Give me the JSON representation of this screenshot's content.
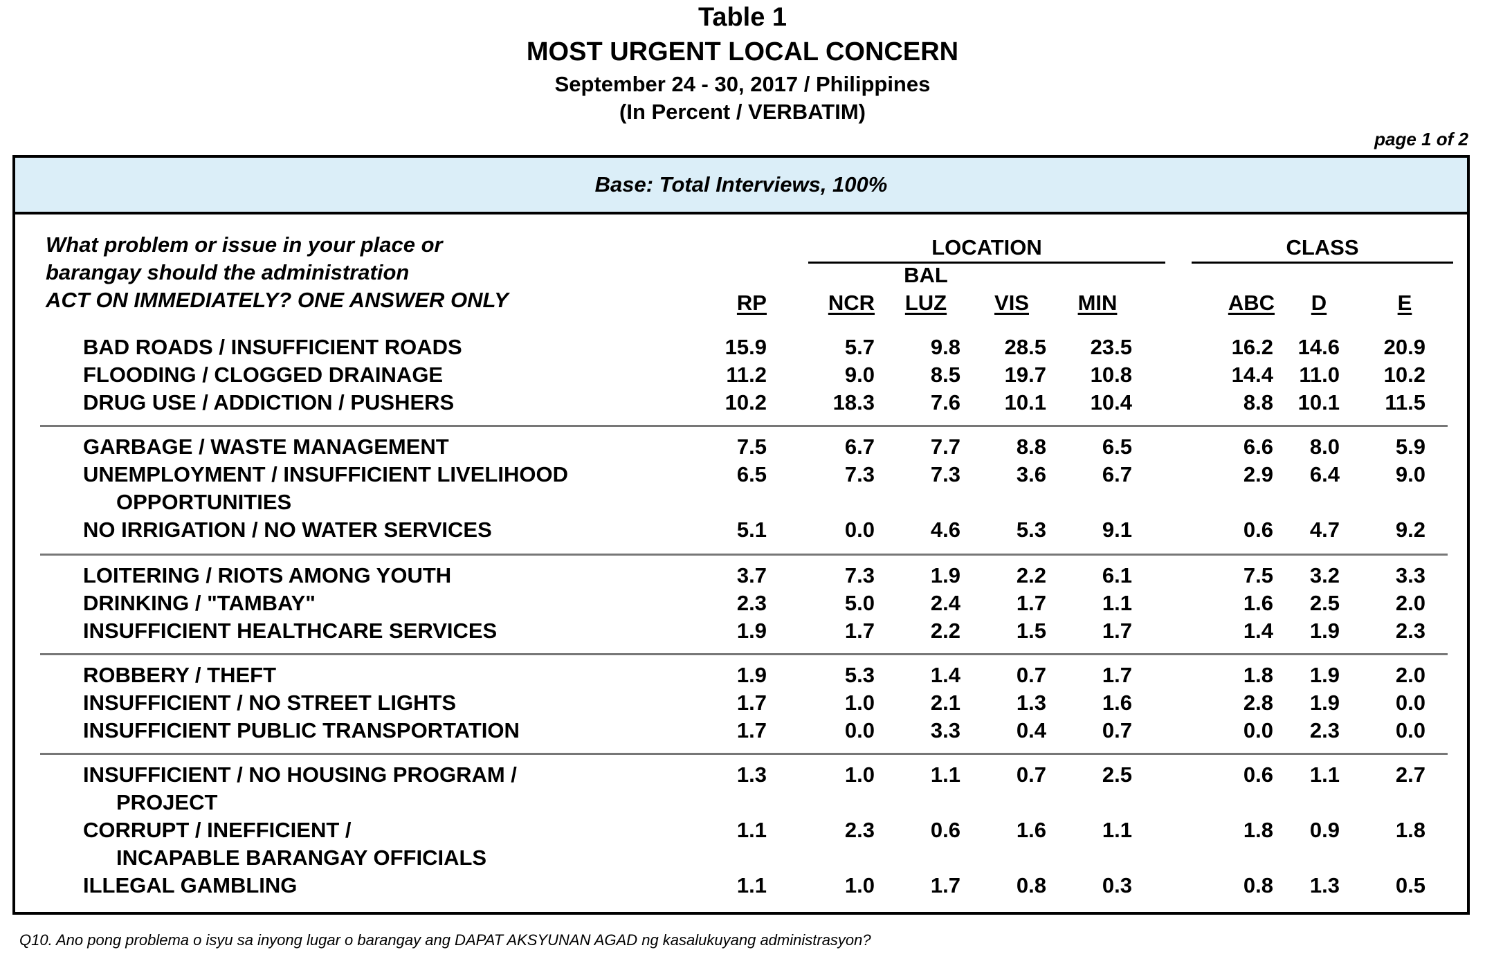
{
  "header": {
    "table_number": "Table 1",
    "title": "MOST URGENT LOCAL CONCERN",
    "date_location": "September 24 - 30, 2017 / Philippines",
    "unit": "(In Percent / VERBATIM)",
    "page_indicator": "page 1 of 2"
  },
  "base_label": "Base: Total Interviews, 100%",
  "question": {
    "line1": "What problem or issue in your place or",
    "line2": "barangay should the administration",
    "line3": "ACT ON IMMEDIATELY? ONE ANSWER ONLY"
  },
  "groups": {
    "location": "LOCATION",
    "class": "CLASS"
  },
  "columns": {
    "rp": "RP",
    "ncr": "NCR",
    "bal_top": "BAL",
    "bal_bottom": "LUZ",
    "vis": "VIS",
    "min": "MIN",
    "abc": "ABC",
    "d": "D",
    "e": "E"
  },
  "rows": [
    {
      "label": "BAD ROADS / INSUFFICIENT ROADS",
      "label2": "",
      "values": [
        "15.9",
        "5.7",
        "9.8",
        "28.5",
        "23.5",
        "16.2",
        "14.6",
        "20.9"
      ]
    },
    {
      "label": "FLOODING / CLOGGED DRAINAGE",
      "label2": "",
      "values": [
        "11.2",
        "9.0",
        "8.5",
        "19.7",
        "10.8",
        "14.4",
        "11.0",
        "10.2"
      ]
    },
    {
      "label": "DRUG USE / ADDICTION / PUSHERS",
      "label2": "",
      "values": [
        "10.2",
        "18.3",
        "7.6",
        "10.1",
        "10.4",
        "8.8",
        "10.1",
        "11.5"
      ]
    },
    {
      "label": "GARBAGE / WASTE MANAGEMENT",
      "label2": "",
      "values": [
        "7.5",
        "6.7",
        "7.7",
        "8.8",
        "6.5",
        "6.6",
        "8.0",
        "5.9"
      ]
    },
    {
      "label": "UNEMPLOYMENT / INSUFFICIENT LIVELIHOOD",
      "label2": "OPPORTUNITIES",
      "values": [
        "6.5",
        "7.3",
        "7.3",
        "3.6",
        "6.7",
        "2.9",
        "6.4",
        "9.0"
      ]
    },
    {
      "label": "NO IRRIGATION / NO WATER SERVICES",
      "label2": "",
      "values": [
        "5.1",
        "0.0",
        "4.6",
        "5.3",
        "9.1",
        "0.6",
        "4.7",
        "9.2"
      ]
    },
    {
      "label": "LOITERING / RIOTS AMONG YOUTH",
      "label2": "",
      "values": [
        "3.7",
        "7.3",
        "1.9",
        "2.2",
        "6.1",
        "7.5",
        "3.2",
        "3.3"
      ]
    },
    {
      "label": "DRINKING / \"TAMBAY\"",
      "label2": "",
      "values": [
        "2.3",
        "5.0",
        "2.4",
        "1.7",
        "1.1",
        "1.6",
        "2.5",
        "2.0"
      ]
    },
    {
      "label": "INSUFFICIENT HEALTHCARE SERVICES",
      "label2": "",
      "values": [
        "1.9",
        "1.7",
        "2.2",
        "1.5",
        "1.7",
        "1.4",
        "1.9",
        "2.3"
      ]
    },
    {
      "label": "ROBBERY / THEFT",
      "label2": "",
      "values": [
        "1.9",
        "5.3",
        "1.4",
        "0.7",
        "1.7",
        "1.8",
        "1.9",
        "2.0"
      ]
    },
    {
      "label": "INSUFFICIENT / NO STREET LIGHTS",
      "label2": "",
      "values": [
        "1.7",
        "1.0",
        "2.1",
        "1.3",
        "1.6",
        "2.8",
        "1.9",
        "0.0"
      ]
    },
    {
      "label": "INSUFFICIENT PUBLIC TRANSPORTATION",
      "label2": "",
      "values": [
        "1.7",
        "0.0",
        "3.3",
        "0.4",
        "0.7",
        "0.0",
        "2.3",
        "0.0"
      ]
    },
    {
      "label": "INSUFFICIENT / NO HOUSING PROGRAM /",
      "label2": "PROJECT",
      "values": [
        "1.3",
        "1.0",
        "1.1",
        "0.7",
        "2.5",
        "0.6",
        "1.1",
        "2.7"
      ]
    },
    {
      "label": "CORRUPT / INEFFICIENT /",
      "label2": "INCAPABLE BARANGAY OFFICIALS",
      "values": [
        "1.1",
        "2.3",
        "0.6",
        "1.6",
        "1.1",
        "1.8",
        "0.9",
        "1.8"
      ]
    },
    {
      "label": "ILLEGAL GAMBLING",
      "label2": "",
      "values": [
        "1.1",
        "1.0",
        "1.7",
        "0.8",
        "0.3",
        "0.8",
        "1.3",
        "0.5"
      ]
    }
  ],
  "footnote": "Q10.  Ano pong problema o isyu sa inyong lugar o barangay ang DAPAT AKSYUNAN AGAD ng kasalukuyang administrasyon?"
}
